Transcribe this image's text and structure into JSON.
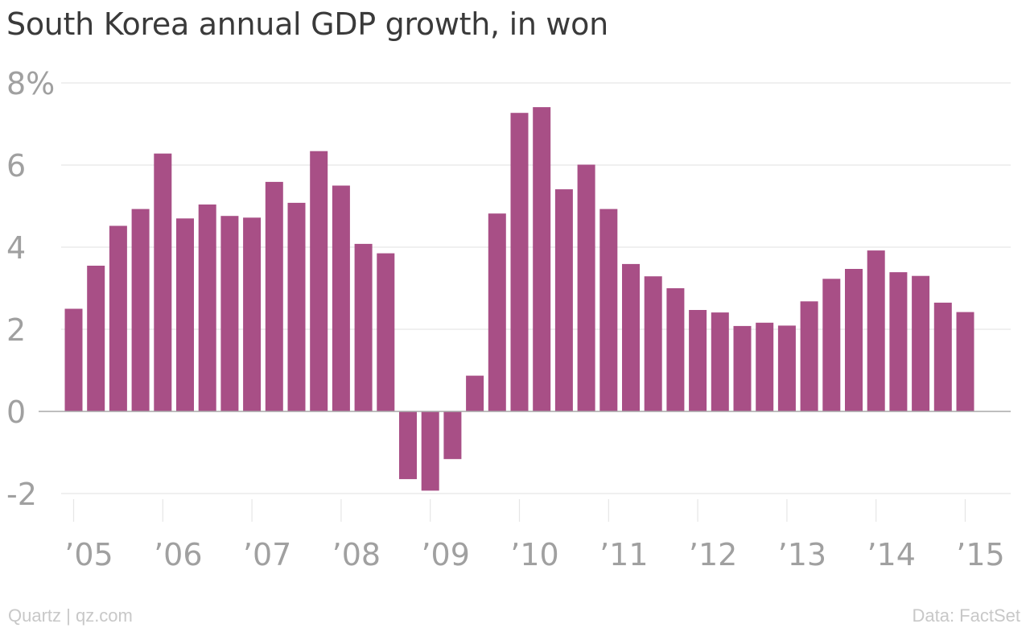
{
  "title": "South Korea annual GDP growth, in won",
  "footer": {
    "source_left": "Quartz | qz.com",
    "source_right": "Data: FactSet"
  },
  "colors": {
    "bar": "#a84f86",
    "grid": "#e6e6e6",
    "zero_line": "#a8a8a8",
    "tick_label": "#a0a0a0",
    "title": "#3a3a3a",
    "footer": "#c8c8c8"
  },
  "chart_data": {
    "type": "bar",
    "title": "South Korea annual GDP growth, in won",
    "xlabel": "",
    "ylabel": "",
    "ylim": [
      -2.5,
      8
    ],
    "grid": true,
    "y_ticks": [
      {
        "value": 8,
        "label": "8%"
      },
      {
        "value": 6,
        "label": "6"
      },
      {
        "value": 4,
        "label": "4"
      },
      {
        "value": 2,
        "label": "2"
      },
      {
        "value": 0,
        "label": "0"
      },
      {
        "value": -2,
        "label": "-2"
      }
    ],
    "x_ticks": [
      {
        "quarter_index": 0,
        "label": "’05"
      },
      {
        "quarter_index": 4,
        "label": "’06"
      },
      {
        "quarter_index": 8,
        "label": "’07"
      },
      {
        "quarter_index": 12,
        "label": "’08"
      },
      {
        "quarter_index": 16,
        "label": "’09"
      },
      {
        "quarter_index": 20,
        "label": "’10"
      },
      {
        "quarter_index": 24,
        "label": "’11"
      },
      {
        "quarter_index": 28,
        "label": "’12"
      },
      {
        "quarter_index": 32,
        "label": "’13"
      },
      {
        "quarter_index": 36,
        "label": "’14"
      },
      {
        "quarter_index": 40,
        "label": "’15"
      }
    ],
    "values": [
      2.5,
      3.55,
      4.52,
      4.93,
      6.28,
      4.7,
      5.04,
      4.76,
      4.72,
      5.59,
      5.08,
      6.34,
      5.5,
      4.08,
      3.85,
      -1.65,
      -1.93,
      -1.16,
      0.87,
      4.82,
      7.27,
      7.41,
      5.41,
      6.01,
      4.93,
      3.59,
      3.29,
      3.0,
      2.47,
      2.41,
      2.08,
      2.16,
      2.09,
      2.68,
      3.23,
      3.47,
      3.92,
      3.39,
      3.3,
      2.65,
      2.42
    ]
  }
}
